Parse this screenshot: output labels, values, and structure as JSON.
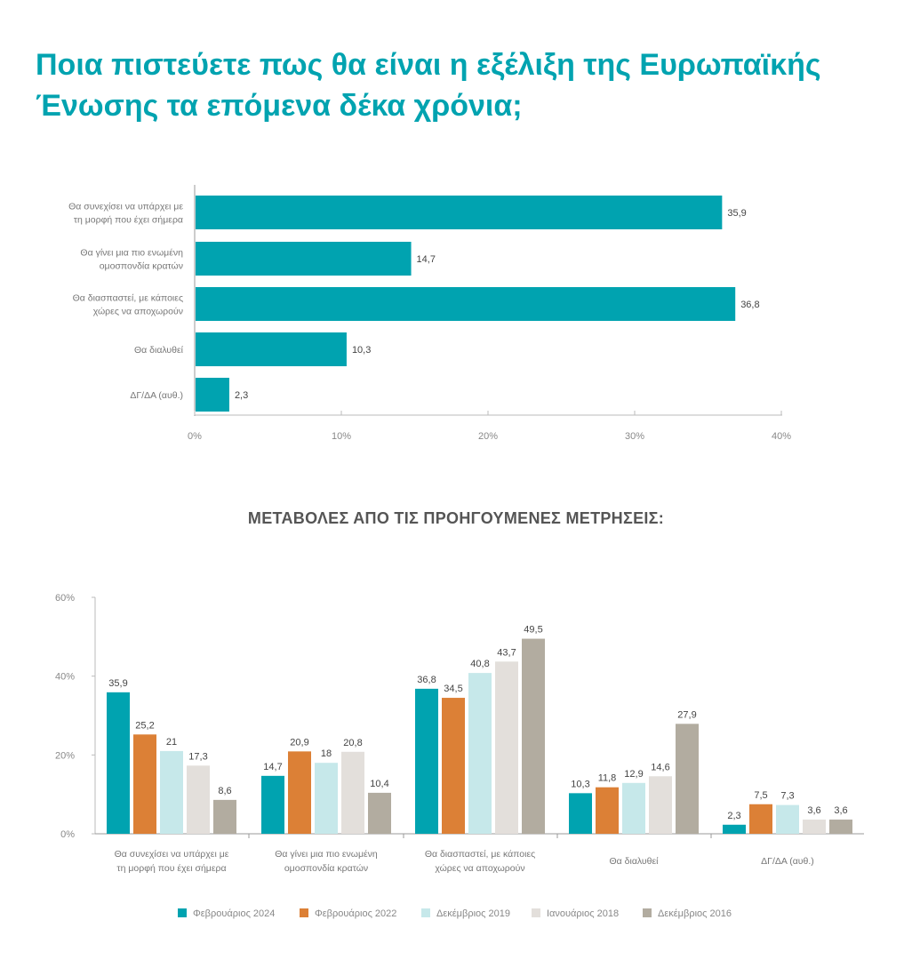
{
  "title_lines": [
    "Ποια πιστεύετε πως θα είναι η εξέλιξη της Ευρωπαϊκής",
    "Ένωσης τα επόμενα δέκα χρόνια;"
  ],
  "subtitle": "ΜΕΤΑΒΟΛΕΣ ΑΠΟ ΤΙΣ ΠΡΟΗΓΟΥΜΕΝΕΣ ΜΕΤΡΗΣΕΙΣ:",
  "chart_data": [
    {
      "type": "bar",
      "orientation": "horizontal",
      "categories": [
        [
          "Θα συνεχίσει να υπάρχει με",
          "τη μορφή που έχει σήμερα"
        ],
        [
          "Θα γίνει μια πιο ενωμένη",
          "ομοσπονδία κρατών"
        ],
        [
          "Θα διασπαστεί, με κάποιες",
          "χώρες να αποχωρούν"
        ],
        [
          "Θα διαλυθεί"
        ],
        [
          "ΔΓ/ΔΑ (αυθ.)"
        ]
      ],
      "values": [
        35.9,
        14.7,
        36.8,
        10.3,
        2.3
      ],
      "data_labels": [
        "35,9",
        "14,7",
        "36,8",
        "10,3",
        "2,3"
      ],
      "xlim": [
        0,
        40
      ],
      "xticks": [
        "0%",
        "10%",
        "20%",
        "30%",
        "40%"
      ],
      "color": "#00a3b0",
      "grid": false
    },
    {
      "type": "bar",
      "orientation": "vertical",
      "categories": [
        [
          "Θα συνεχίσει να υπάρχει με",
          "τη μορφή που έχει σήμερα"
        ],
        [
          "Θα γίνει μια πιο ενωμένη",
          "ομοσπονδία κρατών"
        ],
        [
          "Θα διασπαστεί, με κάποιες",
          "χώρες να αποχωρούν"
        ],
        [
          "Θα διαλυθεί"
        ],
        [
          "ΔΓ/ΔΑ (αυθ.)"
        ]
      ],
      "series": [
        {
          "name": "Φεβρουάριος 2024",
          "color": "#00a3b0",
          "values": [
            35.9,
            14.7,
            36.8,
            10.3,
            2.3
          ],
          "labels": [
            "35,9",
            "14,7",
            "36,8",
            "10,3",
            "2,3"
          ]
        },
        {
          "name": "Φεβρουάριος 2022",
          "color": "#dc8036",
          "values": [
            25.2,
            20.9,
            34.5,
            11.8,
            7.5
          ],
          "labels": [
            "25,2",
            "20,9",
            "34,5",
            "11,8",
            "7,5"
          ]
        },
        {
          "name": "Δεκέμβριος 2019",
          "color": "#c6e8ea",
          "values": [
            21,
            18,
            40.8,
            12.9,
            7.3
          ],
          "labels": [
            "21",
            "18",
            "40,8",
            "12,9",
            "7,3"
          ]
        },
        {
          "name": "Ιανουάριος 2018",
          "color": "#e3dfdb",
          "values": [
            17.3,
            20.8,
            43.7,
            14.6,
            3.6
          ],
          "labels": [
            "17,3",
            "20,8",
            "43,7",
            "14,6",
            "3,6"
          ]
        },
        {
          "name": "Δεκέμβριος 2016",
          "color": "#b2aca0",
          "values": [
            8.6,
            10.4,
            49.5,
            27.9,
            3.6
          ],
          "labels": [
            "8,6",
            "10,4",
            "49,5",
            "27,9",
            "3,6"
          ]
        }
      ],
      "ylim": [
        0,
        60
      ],
      "yticks": [
        "0%",
        "20%",
        "40%",
        "60%"
      ],
      "legend_position": "bottom",
      "grid": false
    }
  ]
}
